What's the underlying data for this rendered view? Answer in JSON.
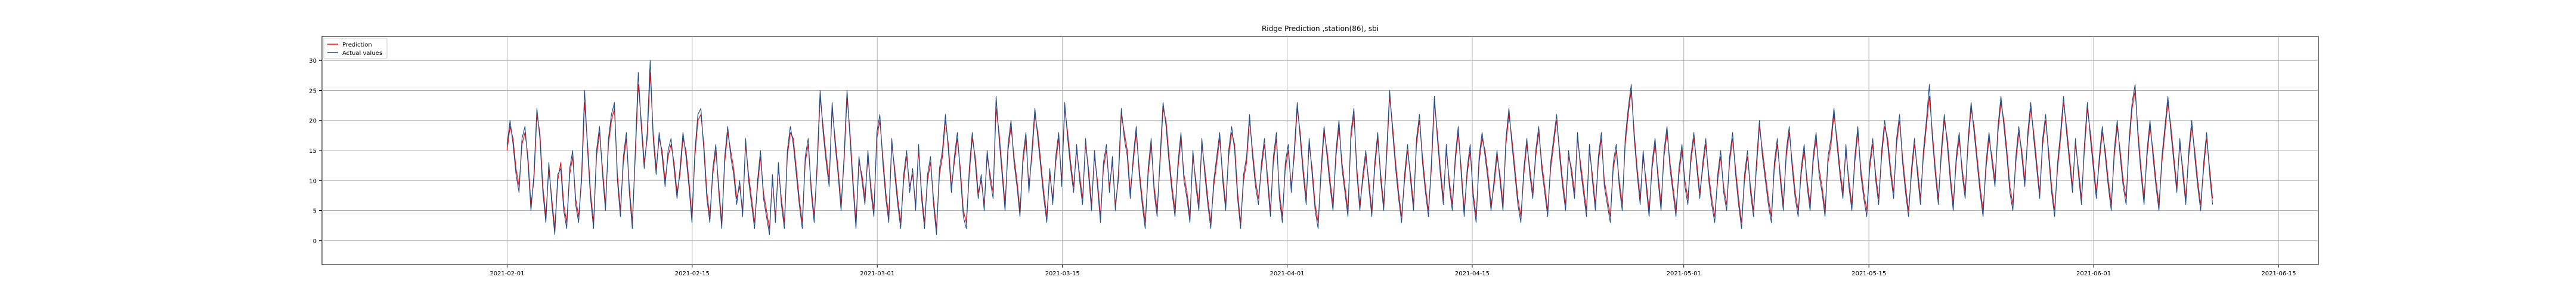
{
  "chart_data": {
    "type": "line",
    "title": "Ridge Prediction ,station(86), sbi",
    "xlabel": "",
    "ylabel": "",
    "x_range": [
      "2021-01-18",
      "2021-06-18"
    ],
    "x_start": "2021-02-01T00:00",
    "x_end": "2021-06-10T00:00",
    "ylim": [
      -4,
      34
    ],
    "grid": true,
    "legend_position": "top-left",
    "x_tick_labels": [
      "2021-02-01",
      "2021-02-15",
      "2021-03-01",
      "2021-03-15",
      "2021-04-01",
      "2021-04-15",
      "2021-05-01",
      "2021-05-15",
      "2021-06-01",
      "2021-06-15"
    ],
    "y_ticks": [
      0,
      5,
      10,
      15,
      20,
      25,
      30
    ],
    "series": [
      {
        "name": "Prediction",
        "color": "#ff0000",
        "values": [
          15,
          19,
          17,
          12,
          9,
          16,
          18,
          14,
          6,
          10,
          21,
          18,
          9,
          4,
          12,
          7,
          2,
          10,
          13,
          6,
          3,
          11,
          14,
          7,
          4,
          10,
          23,
          16,
          8,
          3,
          14,
          18,
          12,
          6,
          16,
          20,
          22,
          11,
          5,
          13,
          17,
          9,
          3,
          14,
          26,
          20,
          13,
          17,
          28,
          18,
          12,
          17,
          15,
          10,
          14,
          16,
          13,
          8,
          11,
          17,
          15,
          10,
          4,
          14,
          20,
          21,
          16,
          8,
          4,
          11,
          15,
          9,
          3,
          13,
          18,
          15,
          12,
          7,
          9,
          5,
          16,
          11,
          7,
          3,
          9,
          14,
          8,
          5,
          2,
          10,
          4,
          12,
          7,
          3,
          14,
          18,
          17,
          12,
          7,
          3,
          13,
          16,
          9,
          4,
          12,
          24,
          19,
          14,
          10,
          22,
          17,
          12,
          6,
          13,
          24,
          18,
          10,
          3,
          13,
          11,
          7,
          14,
          9,
          5,
          17,
          20,
          14,
          8,
          4,
          16,
          12,
          7,
          3,
          10,
          14,
          9,
          11,
          6,
          15,
          8,
          3,
          10,
          13,
          7,
          2,
          11,
          14,
          20,
          16,
          9,
          13,
          17,
          12,
          5,
          3,
          11,
          17,
          14,
          8,
          10,
          6,
          14,
          11,
          8,
          22,
          18,
          12,
          6,
          15,
          19,
          14,
          10,
          5,
          13,
          17,
          9,
          14,
          21,
          18,
          13,
          8,
          4,
          11,
          7,
          13,
          17,
          10,
          22,
          18,
          13,
          9,
          15,
          11,
          7,
          16,
          12,
          6,
          14,
          10,
          4,
          12,
          15,
          9,
          13,
          6,
          10,
          21,
          18,
          15,
          8,
          13,
          18,
          12,
          7,
          3,
          11,
          16,
          9,
          5,
          13,
          22,
          20,
          14,
          9,
          5,
          12,
          17,
          11,
          8,
          4,
          14,
          10,
          6,
          16,
          12,
          7,
          3,
          9,
          13,
          17,
          11,
          6,
          14,
          18,
          16,
          8,
          3,
          10,
          13,
          20,
          15,
          10,
          7,
          12,
          16,
          11,
          5,
          13,
          17,
          8,
          4,
          12,
          15,
          9,
          14,
          22,
          18,
          12,
          7,
          16,
          12,
          6,
          3,
          11,
          18,
          15,
          10,
          6,
          14,
          19,
          13,
          9,
          5,
          17,
          21,
          12,
          6,
          10,
          14,
          10,
          5,
          12,
          17,
          11,
          6,
          14,
          24,
          19,
          13,
          8,
          4,
          10,
          15,
          11,
          6,
          16,
          20,
          14,
          9,
          5,
          12,
          23,
          18,
          12,
          7,
          15,
          10,
          6,
          13,
          18,
          12,
          5,
          11,
          15,
          8,
          4,
          13,
          17,
          15,
          11,
          6,
          9,
          14,
          11,
          6,
          16,
          21,
          17,
          12,
          7,
          4,
          11,
          16,
          12,
          8,
          14,
          18,
          13,
          9,
          5,
          12,
          16,
          20,
          15,
          10,
          6,
          14,
          12,
          8,
          17,
          13,
          9,
          5,
          15,
          11,
          6,
          13,
          17,
          10,
          7,
          4,
          12,
          15,
          10,
          6,
          16,
          21,
          25,
          18,
          12,
          7,
          14,
          10,
          5,
          12,
          16,
          11,
          6,
          14,
          18,
          13,
          9,
          5,
          11,
          15,
          10,
          7,
          13,
          17,
          13,
          8,
          12,
          16,
          11,
          7,
          4,
          10,
          14,
          9,
          6,
          13,
          17,
          12,
          7,
          3,
          10,
          14,
          9,
          5,
          12,
          19,
          15,
          11,
          7,
          4,
          12,
          16,
          11,
          6,
          14,
          18,
          13,
          8,
          5,
          11,
          15,
          10,
          6,
          13,
          17,
          12,
          9,
          5,
          13,
          16,
          21,
          17,
          12,
          8,
          15,
          10,
          6,
          13,
          18,
          12,
          8,
          5,
          12,
          16,
          11,
          7,
          14,
          19,
          17,
          12,
          8,
          16,
          20,
          14,
          9,
          5,
          11,
          16,
          12,
          7,
          14,
          19,
          24,
          18,
          12,
          7,
          14,
          20,
          17,
          11,
          6,
          13,
          17,
          12,
          8,
          16,
          22,
          19,
          14,
          9,
          5,
          12,
          17,
          14,
          10,
          18,
          23,
          20,
          15,
          9,
          6,
          13,
          18,
          15,
          10,
          17,
          22,
          18,
          13,
          8,
          16,
          20,
          15,
          9,
          5,
          12,
          17,
          23,
          19,
          14,
          9,
          16,
          12,
          7,
          15,
          22,
          18,
          13,
          8,
          13,
          18,
          15,
          10,
          6,
          14,
          19,
          15,
          10,
          7,
          16,
          22,
          25,
          18,
          12,
          7,
          14,
          19,
          15,
          10,
          6,
          13,
          18,
          23,
          19,
          14,
          9,
          16,
          12,
          7,
          14,
          19,
          15,
          10,
          6,
          12,
          17,
          12,
          7
        ]
      },
      {
        "name": "Actual values",
        "color": "#1f4e8c",
        "values": [
          16,
          20,
          16,
          11,
          8,
          17,
          19,
          13,
          5,
          11,
          22,
          17,
          8,
          3,
          13,
          6,
          1,
          11,
          12,
          5,
          2,
          12,
          15,
          6,
          3,
          11,
          25,
          15,
          7,
          2,
          15,
          19,
          11,
          5,
          17,
          21,
          23,
          10,
          4,
          14,
          18,
          8,
          2,
          15,
          28,
          19,
          12,
          18,
          30,
          17,
          11,
          18,
          14,
          9,
          15,
          17,
          12,
          7,
          12,
          18,
          14,
          9,
          3,
          15,
          21,
          22,
          15,
          7,
          3,
          12,
          16,
          8,
          2,
          14,
          19,
          14,
          11,
          6,
          10,
          4,
          17,
          10,
          6,
          2,
          10,
          15,
          7,
          4,
          1,
          11,
          3,
          13,
          6,
          2,
          15,
          19,
          16,
          11,
          6,
          2,
          14,
          17,
          8,
          3,
          13,
          25,
          18,
          13,
          9,
          23,
          16,
          11,
          5,
          14,
          25,
          17,
          9,
          2,
          14,
          10,
          6,
          15,
          8,
          4,
          18,
          21,
          13,
          7,
          3,
          17,
          11,
          6,
          2,
          11,
          15,
          8,
          12,
          5,
          16,
          7,
          2,
          11,
          14,
          6,
          1,
          12,
          15,
          21,
          15,
          8,
          14,
          18,
          11,
          4,
          2,
          12,
          18,
          13,
          7,
          11,
          5,
          15,
          10,
          7,
          24,
          17,
          11,
          5,
          16,
          20,
          13,
          9,
          4,
          14,
          18,
          8,
          15,
          22,
          17,
          12,
          7,
          3,
          12,
          6,
          14,
          18,
          9,
          23,
          17,
          12,
          8,
          16,
          10,
          6,
          17,
          11,
          5,
          15,
          9,
          3,
          13,
          16,
          8,
          14,
          5,
          11,
          22,
          17,
          14,
          7,
          14,
          19,
          11,
          6,
          2,
          12,
          17,
          8,
          4,
          14,
          23,
          19,
          13,
          8,
          4,
          13,
          18,
          10,
          7,
          3,
          15,
          9,
          5,
          17,
          11,
          6,
          2,
          10,
          14,
          18,
          10,
          5,
          15,
          19,
          15,
          7,
          2,
          11,
          14,
          21,
          14,
          9,
          6,
          13,
          17,
          10,
          4,
          14,
          18,
          7,
          3,
          13,
          16,
          8,
          15,
          23,
          17,
          11,
          6,
          17,
          11,
          5,
          2,
          12,
          19,
          14,
          9,
          5,
          15,
          20,
          12,
          8,
          4,
          18,
          22,
          11,
          5,
          11,
          15,
          9,
          4,
          13,
          18,
          10,
          5,
          15,
          25,
          18,
          12,
          7,
          3,
          11,
          16,
          10,
          5,
          17,
          21,
          13,
          8,
          4,
          13,
          24,
          17,
          11,
          6,
          16,
          9,
          5,
          14,
          19,
          11,
          4,
          12,
          16,
          7,
          3,
          14,
          18,
          14,
          10,
          5,
          10,
          15,
          10,
          5,
          17,
          22,
          16,
          11,
          6,
          3,
          12,
          17,
          11,
          7,
          15,
          19,
          12,
          8,
          4,
          13,
          17,
          21,
          14,
          9,
          5,
          15,
          11,
          7,
          18,
          12,
          8,
          4,
          16,
          10,
          5,
          14,
          18,
          9,
          6,
          3,
          13,
          16,
          9,
          5,
          17,
          22,
          26,
          17,
          11,
          6,
          15,
          9,
          4,
          13,
          17,
          10,
          5,
          15,
          19,
          12,
          8,
          4,
          12,
          16,
          9,
          6,
          14,
          18,
          12,
          7,
          13,
          17,
          10,
          6,
          3,
          11,
          15,
          8,
          5,
          14,
          18,
          11,
          6,
          2,
          11,
          15,
          8,
          4,
          13,
          20,
          14,
          10,
          6,
          3,
          13,
          17,
          10,
          5,
          15,
          19,
          12,
          7,
          4,
          12,
          16,
          9,
          5,
          14,
          18,
          11,
          8,
          4,
          14,
          17,
          22,
          16,
          11,
          7,
          16,
          9,
          5,
          14,
          19,
          11,
          7,
          4,
          13,
          17,
          10,
          6,
          15,
          20,
          16,
          11,
          7,
          17,
          21,
          13,
          8,
          4,
          12,
          17,
          11,
          6,
          15,
          20,
          26,
          17,
          11,
          6,
          15,
          21,
          16,
          10,
          5,
          14,
          18,
          11,
          7,
          17,
          23,
          18,
          13,
          8,
          4,
          13,
          18,
          13,
          9,
          19,
          24,
          19,
          14,
          8,
          5,
          14,
          19,
          14,
          9,
          18,
          23,
          17,
          12,
          7,
          17,
          21,
          14,
          8,
          4,
          13,
          18,
          24,
          18,
          13,
          8,
          17,
          11,
          6,
          16,
          23,
          17,
          12,
          7,
          14,
          19,
          14,
          9,
          5,
          15,
          20,
          14,
          9,
          6,
          17,
          23,
          26,
          17,
          11,
          6,
          15,
          20,
          14,
          9,
          5,
          14,
          19,
          24,
          18,
          13,
          8,
          17,
          11,
          6,
          15,
          20,
          14,
          9,
          5,
          13,
          18,
          11,
          6
        ]
      }
    ]
  }
}
